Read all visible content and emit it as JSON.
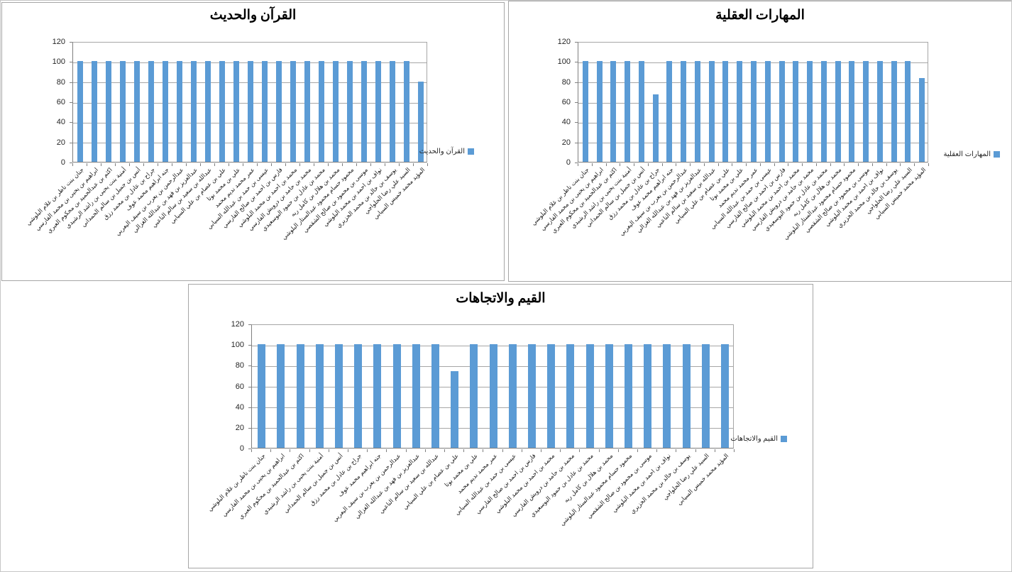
{
  "colors": {
    "bar_fill": "#5B9BD5",
    "gridline": "#A6A6A6",
    "axis_line": "#7F7F7F",
    "panel_border": "#A6A6A6",
    "title_text": "#000000",
    "tick_text": "#262626"
  },
  "chart_data": [
    {
      "type": "bar",
      "title": "القرآن والحديث",
      "legend_label": "القرآن والحديث",
      "legend_position": "right",
      "grid": true,
      "ylim": [
        0,
        120
      ],
      "yticks": [
        0,
        20,
        40,
        60,
        80,
        100,
        120
      ],
      "categories": [
        "جنان بنت ناظر بن غلام البلوشي",
        "ابراهيم بن يحيى بن محمد الفارسي",
        "اكثم بن عبدالحميد بن محكوم العبري",
        "أمنية بنت يحيى بن راشد الرشيدي",
        "أنس بن جميل بن سالم الحمداني",
        "جراح بن عادل بن محمد رزق",
        "جنه ابراهيم محمد عوف",
        "عبدالرحمن بن يعرب بن سيف اليعربي",
        "عبدالعزيز بن فهد بن عبدالله الغزالي",
        "عبدالله بن سعيد بن سالم الناعبي",
        "علي بن عصام بن علي السيابي",
        "علي بن محمد بوتا",
        "عمر محمد نديم محمد",
        "عيسى بن حمد بن عبدالله السيابي",
        "فارس بن احمد بن صالح الفارسي",
        "محمد بن احمد بن محمد البلوشي",
        "محمد بن حامد بن درويش الفارسي",
        "محمد بن عادل بن حمود البوسعيدي",
        "محمد بن هلال بن كامل ربه",
        "محمود حسام محمود عبدالستار البلوشي",
        "موسى بن محمود بن صالح الشقصي",
        "نواف بن احمد بن محمد البلوشي",
        "يوسف بن خالد بن محمد الخزيري",
        "السيد علي رضا الحلواجي",
        "المؤيد محمد خميس السيابي"
      ],
      "values": [
        100,
        100,
        100,
        100,
        100,
        100,
        100,
        100,
        100,
        100,
        100,
        100,
        100,
        100,
        100,
        100,
        100,
        100,
        100,
        100,
        100,
        100,
        100,
        100,
        80
      ]
    },
    {
      "type": "bar",
      "title": "المهارات العقلية",
      "legend_label": "المهارات العقلية",
      "legend_position": "right",
      "grid": true,
      "ylim": [
        0,
        120
      ],
      "yticks": [
        0,
        20,
        40,
        60,
        80,
        100,
        120
      ],
      "categories": [
        "جنان بنت ناظر بن غلام البلوشي",
        "ابراهيم بن يحيى بن محمد الفارسي",
        "اكثم بن عبدالحميد بن محكوم العبري",
        "أمنية بنت يحيى بن راشد الرشيدي",
        "أنس بن جميل بن سالم الحمداني",
        "جراح بن عادل بن محمد رزق",
        "جنه ابراهيم محمد عوف",
        "عبدالرحمن بن يعرب بن سيف اليعربي",
        "عبدالعزيز بن فهد بن عبدالله الغزالي",
        "عبدالله بن سعيد بن سالم الناعبي",
        "علي بن عصام بن علي السيابي",
        "علي بن محمد بوتا",
        "عمر محمد نديم محمد",
        "عيسى بن حمد بن عبدالله السيابي",
        "فارس بن احمد بن صالح الفارسي",
        "محمد بن احمد بن محمد البلوشي",
        "محمد بن حامد بن درويش الفارسي",
        "محمد بن عادل بن حمود البوسعيدي",
        "محمد بن هلال بن كامل ربه",
        "محمود حسام محمود عبدالستار البلوشي",
        "موسى بن محمود بن صالح الشقصي",
        "نواف بن احمد بن محمد البلوشي",
        "يوسف بن خالد بن محمد الخزيري",
        "السيد علي رضا الحلواجي",
        "المؤيد محمد خميس السيابي"
      ],
      "values": [
        100,
        100,
        100,
        100,
        100,
        67,
        100,
        100,
        100,
        100,
        100,
        100,
        100,
        100,
        100,
        100,
        100,
        100,
        100,
        100,
        100,
        100,
        100,
        100,
        83
      ]
    },
    {
      "type": "bar",
      "title": "القيم والاتجاهات",
      "legend_label": "القيم والاتجاهات",
      "legend_position": "right",
      "grid": true,
      "ylim": [
        0,
        120
      ],
      "yticks": [
        0,
        20,
        40,
        60,
        80,
        100,
        120
      ],
      "categories": [
        "جنان بنت ناظر بن غلام البلوشي",
        "ابراهيم بن يحيى بن محمد الفارسي",
        "اكثم بن عبدالحميد بن محكوم العبري",
        "أمنية بنت يحيى بن راشد الرشيدي",
        "أنس بن جميل بن سالم الحمداني",
        "جراح بن عادل بن محمد رزق",
        "جنه ابراهيم محمد عوف",
        "عبدالرحمن بن يعرب بن سيف اليعربي",
        "عبدالعزيز بن فهد بن عبدالله الغزالي",
        "عبدالله بن سعيد بن سالم الناعبي",
        "علي بن عصام بن علي السيابي",
        "علي بن محمد بوتا",
        "عمر محمد نديم محمد",
        "عيسى بن حمد بن عبدالله السيابي",
        "فارس بن احمد بن صالح الفارسي",
        "محمد بن احمد بن محمد البلوشي",
        "محمد بن حامد بن درويش الفارسي",
        "محمد بن عادل بن حمود البوسعيدي",
        "محمد بن هلال بن كامل ربه",
        "محمود حسام محمود عبدالستار البلوشي",
        "موسى بن محمود بن صالح الشقصي",
        "نواف بن احمد بن محمد البلوشي",
        "يوسف بن خالد بن محمد الخزيري",
        "السيد علي رضا الحلواجي",
        "المؤيد محمد خميس السيابي"
      ],
      "values": [
        100,
        100,
        100,
        100,
        100,
        100,
        100,
        100,
        100,
        100,
        74,
        100,
        100,
        100,
        100,
        100,
        100,
        100,
        100,
        100,
        100,
        100,
        100,
        100,
        100
      ]
    }
  ]
}
